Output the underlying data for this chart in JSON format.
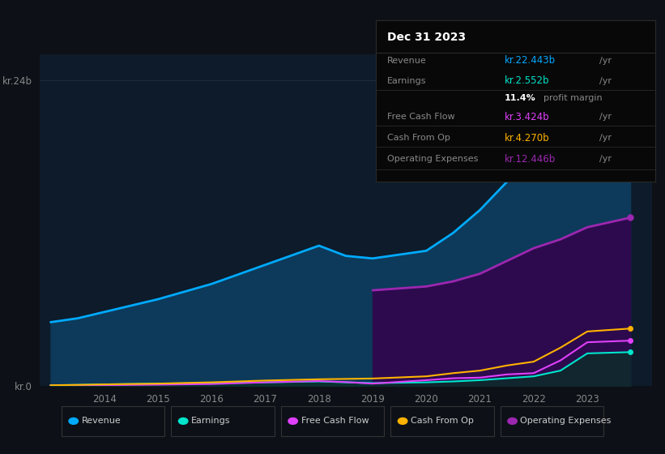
{
  "bg_color": "#0d1117",
  "plot_bg_color": "#0d1b2a",
  "grid_color": "#253545",
  "years": [
    2013.0,
    2013.5,
    2014,
    2015,
    2016,
    2017,
    2018,
    2018.5,
    2019,
    2020,
    2020.5,
    2021,
    2021.5,
    2022,
    2022.5,
    2023,
    2023.8
  ],
  "revenue": [
    5.0,
    5.3,
    5.8,
    6.8,
    8.0,
    9.5,
    11.0,
    10.2,
    10.0,
    10.6,
    12.0,
    13.8,
    16.0,
    17.5,
    19.5,
    22.443,
    24.2
  ],
  "earnings": [
    0.05,
    0.08,
    0.12,
    0.18,
    0.22,
    0.28,
    0.35,
    0.28,
    0.22,
    0.28,
    0.35,
    0.45,
    0.6,
    0.75,
    1.2,
    2.552,
    2.65
  ],
  "free_cash_flow": [
    0.02,
    0.04,
    0.06,
    0.1,
    0.15,
    0.28,
    0.38,
    0.3,
    0.18,
    0.45,
    0.6,
    0.65,
    0.9,
    1.0,
    2.0,
    3.424,
    3.55
  ],
  "cash_from_op": [
    0.05,
    0.08,
    0.12,
    0.18,
    0.28,
    0.42,
    0.52,
    0.55,
    0.58,
    0.75,
    1.0,
    1.2,
    1.6,
    1.9,
    3.0,
    4.27,
    4.5
  ],
  "op_expenses_years": [
    2019,
    2020,
    2020.5,
    2021,
    2021.5,
    2022,
    2022.5,
    2023,
    2023.8
  ],
  "op_expenses": [
    7.5,
    7.8,
    8.2,
    8.8,
    9.8,
    10.8,
    11.5,
    12.446,
    13.2
  ],
  "revenue_color": "#00aaff",
  "revenue_fill": "#0d3a5a",
  "earnings_color": "#00e5cc",
  "earnings_fill": "#0a2e28",
  "free_cash_flow_color": "#e040fb",
  "cash_from_op_color": "#ffb300",
  "op_expenses_color": "#9c27b0",
  "op_expenses_fill": "#2d0a4e",
  "ylim": [
    0,
    26
  ],
  "ytick_labels": [
    "kr.0",
    "kr.24b"
  ],
  "ytick_positions": [
    0,
    24
  ],
  "info_title": "Dec 31 2023",
  "revenue_label": "Revenue",
  "revenue_value": "kr.22.443b",
  "earnings_label": "Earnings",
  "earnings_value": "kr.2.552b",
  "profit_margin": "11.4%",
  "fcf_label": "Free Cash Flow",
  "fcf_value": "kr.3.424b",
  "cfo_label": "Cash From Op",
  "cfo_value": "kr.4.270b",
  "opex_label": "Operating Expenses",
  "opex_value": "kr.12.446b",
  "legend_items": [
    {
      "label": "Revenue",
      "color": "#00aaff"
    },
    {
      "label": "Earnings",
      "color": "#00e5cc"
    },
    {
      "label": "Free Cash Flow",
      "color": "#e040fb"
    },
    {
      "label": "Cash From Op",
      "color": "#ffb300"
    },
    {
      "label": "Operating Expenses",
      "color": "#9c27b0"
    }
  ]
}
